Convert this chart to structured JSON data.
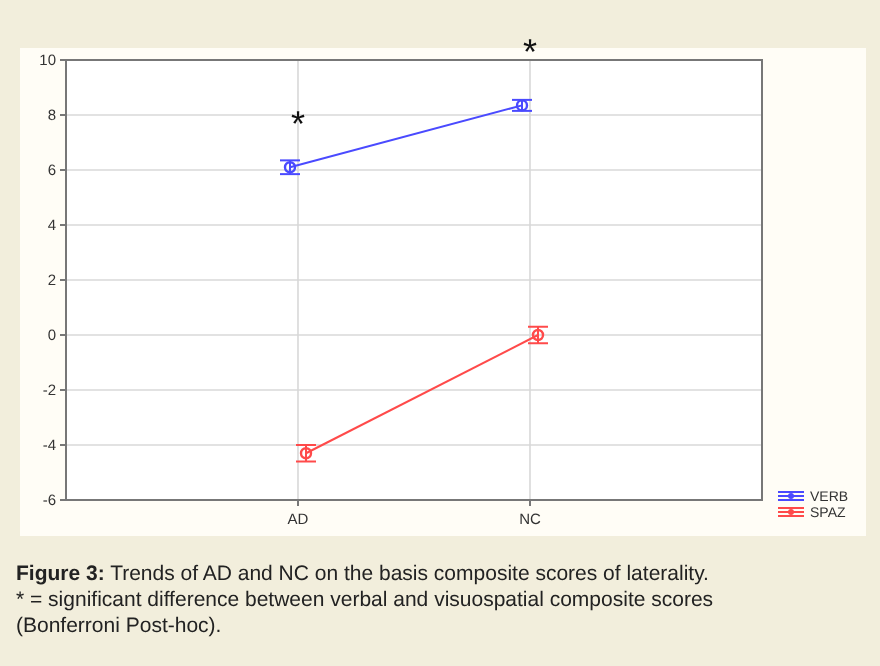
{
  "chart_data": {
    "type": "line",
    "categories": [
      "AD",
      "NC"
    ],
    "series": [
      {
        "name": "VERB",
        "color": "#4a4aff",
        "values": [
          6.1,
          8.35
        ],
        "errors": [
          0.25,
          0.2
        ]
      },
      {
        "name": "SPAZ",
        "color": "#ff4a4a",
        "values": [
          -4.3,
          0.0
        ],
        "errors": [
          0.3,
          0.3
        ]
      }
    ],
    "ylim": [
      -6,
      10
    ],
    "yticks": [
      -6,
      -4,
      -2,
      0,
      2,
      4,
      6,
      8,
      10
    ],
    "grid": true,
    "legend": "bottom right",
    "marker": "circle",
    "line_style": "solid",
    "annotations": [
      "*",
      "*",
      "Figure 3: Trends of AD and NC on the basis composite scores of laterality.",
      "* = significant difference between verbal and visuospatial composite scores (Bonferroni Post-hoc)."
    ]
  }
}
